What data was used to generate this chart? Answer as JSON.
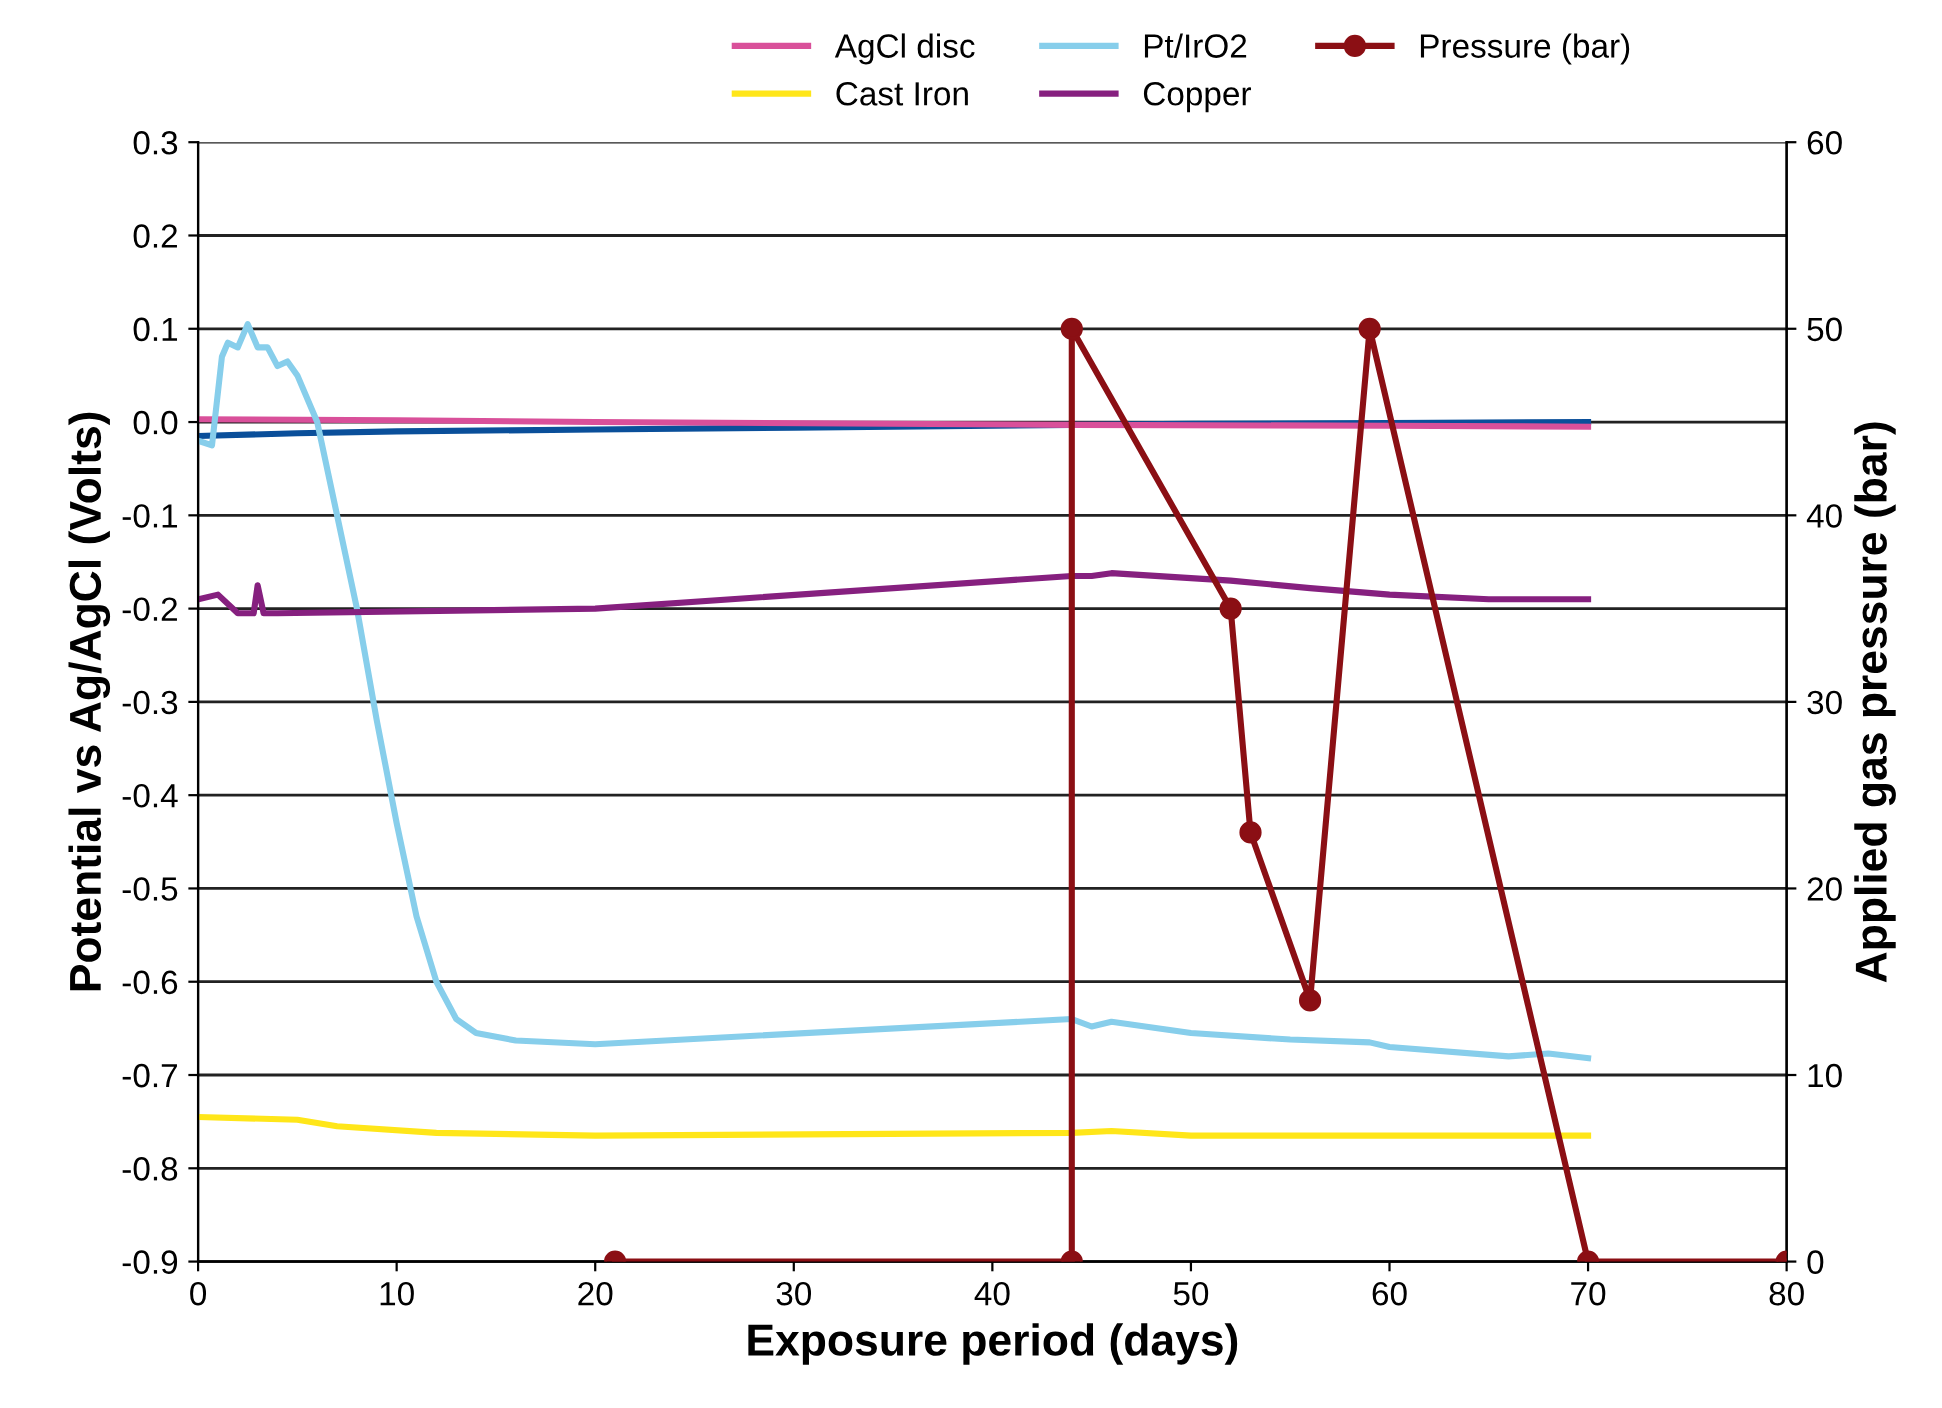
{
  "chart_data": {
    "type": "line",
    "xlabel": "Exposure period (days)",
    "ylabel": "Potential vs Ag/AgCl (Volts)",
    "y2label": "Applied gas pressure (bar)",
    "xlim": [
      0,
      80
    ],
    "xticks": [
      0,
      10,
      20,
      30,
      40,
      50,
      60,
      70,
      80
    ],
    "ylim": [
      -0.9,
      0.3
    ],
    "yticks": [
      -0.9,
      -0.8,
      -0.7,
      -0.6,
      -0.5,
      -0.4,
      -0.3,
      -0.2,
      -0.1,
      {
        "value": 0,
        "label": "0.0"
      },
      0.1,
      0.2,
      0.3
    ],
    "y2lim": [
      0,
      60
    ],
    "y2ticks": [
      0,
      10,
      20,
      30,
      40,
      50,
      60
    ],
    "grid": "y",
    "legend": "top",
    "marker": "none",
    "line_style": "solid",
    "series": [
      {
        "color": "#0a4f9a",
        "x": [
          0,
          5,
          10,
          20,
          30,
          44,
          50,
          60,
          70
        ],
        "values": [
          -0.015,
          -0.012,
          -0.01,
          -0.008,
          -0.006,
          -0.003,
          -0.002,
          -0.001,
          0.0
        ]
      },
      {
        "name": "AgCl disc",
        "color": "#d9509a",
        "x": [
          0,
          10,
          20,
          44,
          60,
          70
        ],
        "values": [
          0.003,
          0.002,
          0.0,
          -0.003,
          -0.004,
          -0.005
        ]
      },
      {
        "name": "Cast Iron",
        "color": "#ffe619",
        "x": [
          0,
          5,
          7,
          12,
          20,
          44,
          46,
          50,
          70
        ],
        "values": [
          -0.745,
          -0.748,
          -0.755,
          -0.762,
          -0.765,
          -0.762,
          -0.76,
          -0.765,
          -0.765
        ]
      },
      {
        "name": "Pt/IrO2",
        "color": "#87ceeb",
        "x": [
          0,
          0.7,
          1.2,
          1.5,
          2,
          2.5,
          3,
          3.5,
          4,
          4.5,
          5,
          6,
          7,
          8,
          9,
          10,
          11,
          12,
          13,
          14,
          16,
          20,
          44,
          45,
          46,
          50,
          55,
          59,
          60,
          66,
          68,
          70
        ],
        "values": [
          -0.02,
          -0.025,
          0.07,
          0.085,
          0.08,
          0.105,
          0.08,
          0.08,
          0.06,
          0.065,
          0.05,
          0.0,
          -0.1,
          -0.2,
          -0.32,
          -0.43,
          -0.53,
          -0.6,
          -0.64,
          -0.655,
          -0.663,
          -0.667,
          -0.64,
          -0.648,
          -0.643,
          -0.655,
          -0.662,
          -0.665,
          -0.67,
          -0.68,
          -0.677,
          -0.682
        ]
      },
      {
        "name": "Copper",
        "color": "#86207f",
        "x": [
          0,
          1,
          2,
          2.8,
          3,
          3.3,
          4,
          20,
          44,
          45,
          46,
          52,
          56,
          60,
          65,
          70
        ],
        "values": [
          -0.19,
          -0.185,
          -0.205,
          -0.205,
          -0.175,
          -0.205,
          -0.205,
          -0.2,
          -0.165,
          -0.165,
          -0.162,
          -0.17,
          -0.178,
          -0.185,
          -0.19,
          -0.19
        ]
      },
      {
        "name": "Pressure (bar)",
        "color": "#8b0f14",
        "axis": "y2",
        "marker": "circle",
        "x": [
          21,
          44,
          44,
          52,
          53,
          56,
          59,
          70,
          80
        ],
        "values": [
          0,
          0,
          50,
          35,
          23,
          14,
          50,
          0,
          0
        ]
      }
    ]
  }
}
